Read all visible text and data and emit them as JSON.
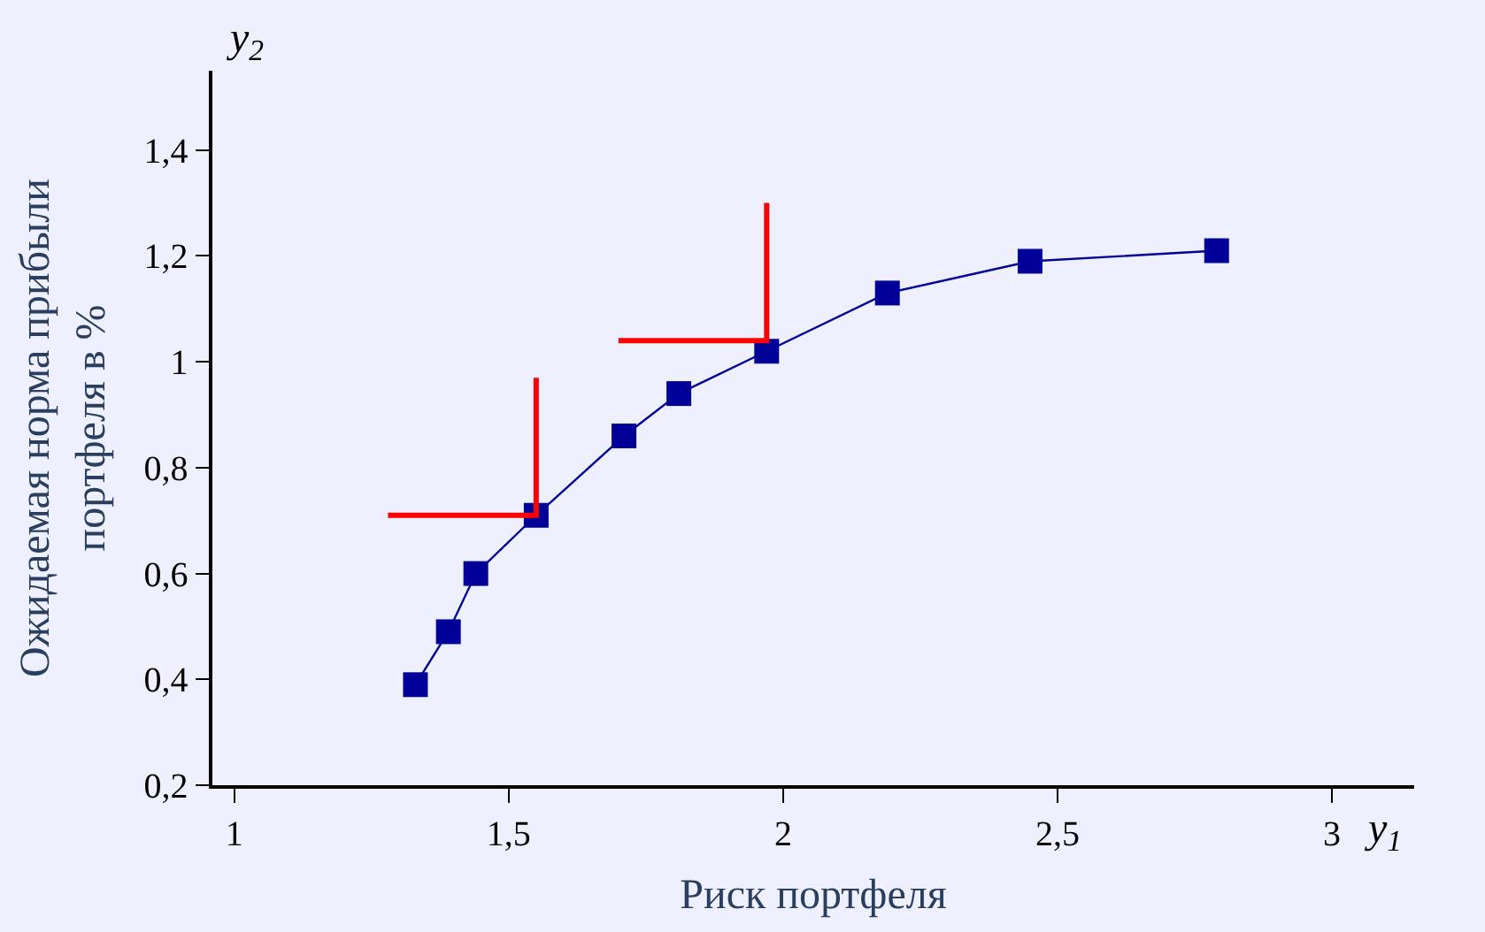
{
  "chart_data": {
    "type": "line",
    "xlabel": "Риск портфеля",
    "ylabel": "Ожидаемая норма прибыли\nпортфеля в %",
    "annotations": [
      "y$_{2}$",
      "y$_{1}$"
    ],
    "xlim": [
      0.96,
      3.15
    ],
    "ylim": [
      0.2,
      1.55
    ],
    "xticks": [
      1,
      {
        "value": 1.5,
        "label": "1,5"
      },
      2,
      {
        "value": 2.5,
        "label": "2,5"
      },
      3
    ],
    "yticks": [
      {
        "value": 0.2,
        "label": "0,2"
      },
      {
        "value": 0.4,
        "label": "0,4"
      },
      {
        "value": 0.6,
        "label": "0,6"
      },
      {
        "value": 0.8,
        "label": "0,8"
      },
      1,
      {
        "value": 1.2,
        "label": "1,2"
      },
      {
        "value": 1.4,
        "label": "1,4"
      }
    ],
    "grid": false,
    "marker": "square",
    "line_style": "solid",
    "series": [
      {
        "color": "#000099",
        "x": [
          1.33,
          1.39,
          1.44,
          1.55,
          1.71,
          1.81,
          1.97,
          2.19,
          2.45,
          2.79
        ],
        "values": [
          0.39,
          0.49,
          0.6,
          0.71,
          0.86,
          0.94,
          1.02,
          1.13,
          1.19,
          1.21
        ]
      },
      {
        "color": "#ff0000",
        "marker": "none",
        "x": [
          1.28,
          1.55,
          1.55
        ],
        "values": [
          0.71,
          0.71,
          0.97
        ]
      },
      {
        "color": "#ff0000",
        "marker": "none",
        "x": [
          1.7,
          1.97,
          1.97
        ],
        "values": [
          1.04,
          1.04,
          1.3
        ]
      }
    ]
  }
}
